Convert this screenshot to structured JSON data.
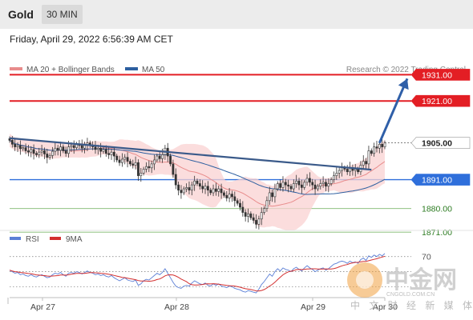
{
  "header": {
    "title": "Gold",
    "timeframe": "30 MIN",
    "datetime": "Friday, April 29, 2022 6:56:39 AM CET"
  },
  "watermark": {
    "logo_text": "中金网",
    "domain": "CNGOLD.COM.CN",
    "tagline": "中 文 财 经 新 媒 体"
  },
  "colors": {
    "resistance": "#e31e24",
    "support": "#2f6fdb",
    "target": "#2a7a1f",
    "ma": "#e88c8c",
    "ma50": "#2d5fa0",
    "trendline": "#3a5a8a",
    "band_fill": "#f9d2d2",
    "rsi": "#5b7fd6",
    "rsi_ma": "#d32f2f"
  },
  "chart_data": [
    {
      "type": "candlestick",
      "legend": [
        {
          "label": "MA 20 + Bollinger Bands",
          "color": "#e88c8c"
        },
        {
          "label": "MA 50",
          "color": "#2d5fa0"
        }
      ],
      "legend_position": "top-left",
      "credit": "Research © 2022 Trading Central",
      "ylim": [
        1868,
        1936
      ],
      "x_ticks": [
        "Apr 27",
        "Apr 28",
        "Apr 29",
        "Apr 30"
      ],
      "levels": [
        {
          "value": 1931.0,
          "label": "1931.00",
          "role": "resistance"
        },
        {
          "value": 1921.0,
          "label": "1921.00",
          "role": "resistance"
        },
        {
          "value": 1905.0,
          "label": "1905.00",
          "role": "last"
        },
        {
          "value": 1891.0,
          "label": "1891.00",
          "role": "pivot"
        },
        {
          "value": 1880.0,
          "label": "1880.00",
          "role": "support"
        },
        {
          "value": 1871.0,
          "label": "1871.00",
          "role": "support"
        }
      ],
      "trendline": [
        {
          "x": 0,
          "y": 1906.8
        },
        {
          "x": 135,
          "y": 1894.8
        }
      ],
      "target_arrow": [
        {
          "x": 138,
          "y": 1905.0
        },
        {
          "x": 146,
          "y": 1929.5
        }
      ],
      "close": [
        1906.0,
        1904.5,
        1903.5,
        1904.0,
        1902.8,
        1903.2,
        1902.0,
        1901.5,
        1902.5,
        1901.0,
        1900.5,
        1901.5,
        1902.0,
        1900.8,
        1899.5,
        1900.2,
        1901.8,
        1903.0,
        1902.2,
        1903.5,
        1902.0,
        1901.0,
        1903.5,
        1904.0,
        1903.2,
        1904.5,
        1904.0,
        1903.0,
        1904.2,
        1905.0,
        1904.0,
        1903.5,
        1902.5,
        1903.0,
        1901.8,
        1902.5,
        1901.0,
        1900.5,
        1901.5,
        1900.0,
        1898.5,
        1897.5,
        1898.8,
        1899.5,
        1898.0,
        1897.0,
        1896.5,
        1897.5,
        1892.5,
        1893.5,
        1895.0,
        1896.0,
        1895.5,
        1897.0,
        1898.5,
        1900.0,
        1899.0,
        1900.5,
        1903.0,
        1900.0,
        1897.0,
        1893.0,
        1889.0,
        1887.0,
        1886.0,
        1887.5,
        1888.0,
        1887.0,
        1889.0,
        1890.5,
        1889.5,
        1888.5,
        1887.5,
        1888.5,
        1887.0,
        1886.0,
        1887.5,
        1886.5,
        1887.5,
        1886.0,
        1885.0,
        1884.0,
        1885.5,
        1884.5,
        1883.0,
        1882.0,
        1880.5,
        1878.5,
        1877.0,
        1878.0,
        1876.5,
        1875.5,
        1874.0,
        1876.0,
        1878.5,
        1880.0,
        1883.0,
        1886.0,
        1884.5,
        1887.5,
        1889.5,
        1888.0,
        1890.0,
        1889.0,
        1888.5,
        1887.5,
        1889.5,
        1890.5,
        1889.0,
        1888.0,
        1890.0,
        1891.5,
        1890.0,
        1889.0,
        1887.5,
        1888.5,
        1889.5,
        1890.0,
        1888.5,
        1889.5,
        1891.0,
        1892.5,
        1893.5,
        1894.5,
        1895.5,
        1895.0,
        1894.0,
        1895.5,
        1894.5,
        1895.0,
        1894.0,
        1896.5,
        1898.0,
        1897.0,
        1902.0,
        1901.0,
        1903.5,
        1903.0,
        1904.5,
        1903.5,
        1905.0
      ],
      "rsi": {
        "legend": [
          {
            "label": "RSI",
            "color": "#5b7fd6"
          },
          {
            "label": "9MA",
            "color": "#d32f2f"
          }
        ],
        "ylim": [
          20,
          75
        ],
        "levels": [
          70,
          50,
          30
        ],
        "y_tick": "70",
        "values": [
          52,
          50,
          48,
          49,
          46,
          47,
          45,
          44,
          46,
          44,
          43,
          45,
          46,
          44,
          42,
          43,
          46,
          48,
          47,
          49,
          46,
          44,
          48,
          49,
          48,
          50,
          49,
          47,
          49,
          51,
          49,
          48,
          46,
          47,
          45,
          46,
          44,
          43,
          45,
          42,
          40,
          38,
          40,
          42,
          39,
          38,
          37,
          39,
          32,
          34,
          38,
          40,
          39,
          42,
          45,
          48,
          46,
          49,
          54,
          48,
          42,
          36,
          31,
          29,
          28,
          31,
          32,
          31,
          35,
          38,
          36,
          34,
          33,
          35,
          32,
          31,
          34,
          32,
          34,
          31,
          30,
          29,
          31,
          30,
          28,
          27,
          26,
          24,
          23,
          25,
          24,
          23,
          22,
          27,
          33,
          37,
          42,
          47,
          44,
          50,
          54,
          51,
          55,
          53,
          52,
          50,
          54,
          56,
          53,
          51,
          55,
          58,
          55,
          53,
          50,
          52,
          54,
          55,
          52,
          54,
          57,
          60,
          61,
          63,
          64,
          63,
          61,
          64,
          62,
          63,
          61,
          66,
          68,
          65,
          71,
          69,
          72,
          70,
          73,
          71,
          74
        ]
      }
    }
  ]
}
